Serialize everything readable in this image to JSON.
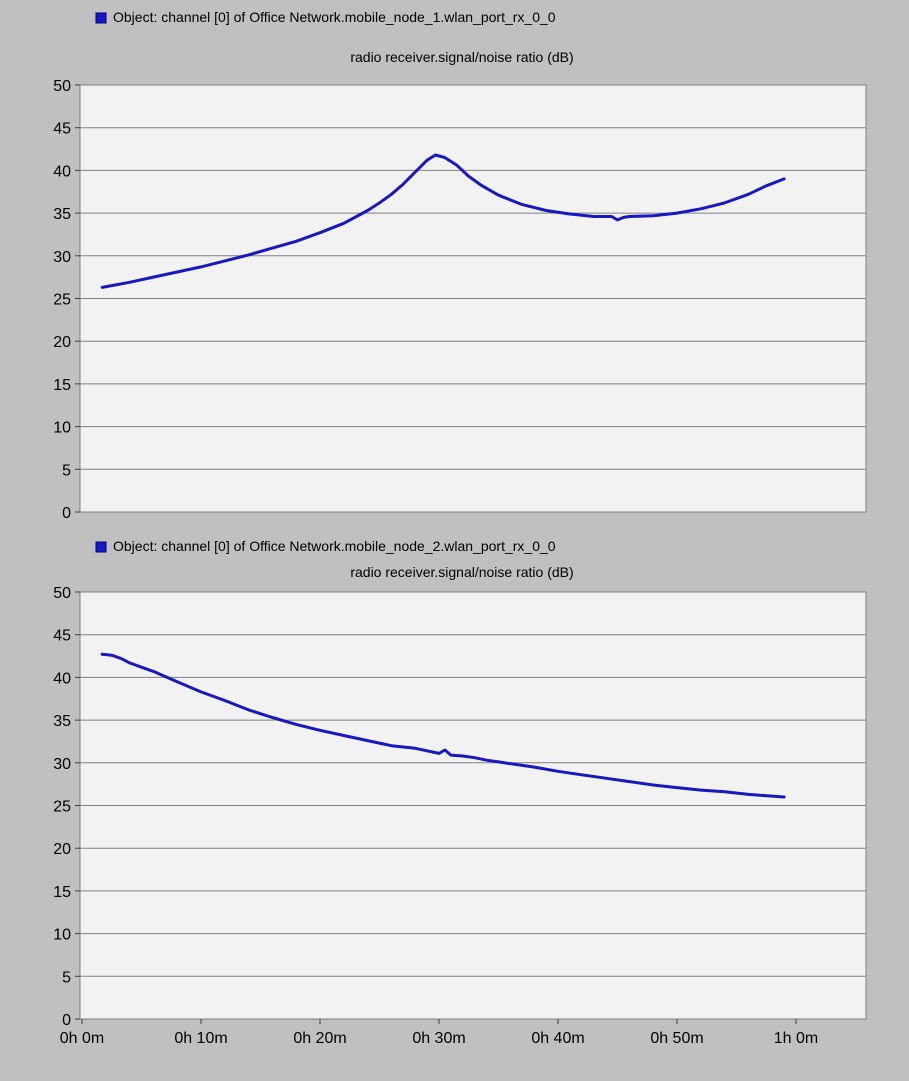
{
  "chart_data": [
    {
      "type": "line",
      "legend_label": "Object: channel [0] of Office Network.mobile_node_1.wlan_port_rx_0_0",
      "title": "radio receiver.signal/noise ratio (dB)",
      "xlabel": "",
      "ylabel": "",
      "ylim": [
        0,
        50
      ],
      "yticks": [
        0,
        5,
        10,
        15,
        20,
        25,
        30,
        35,
        40,
        45,
        50
      ],
      "xlim_minutes": [
        0,
        66
      ],
      "grid": true,
      "series_color": "#1818c0",
      "series": [
        {
          "name": "Object: channel [0] of Office Network.mobile_node_1.wlan_port_rx_0_0",
          "x_minutes": [
            1.7,
            4,
            6,
            8,
            10,
            12,
            14,
            16,
            18,
            20,
            22,
            24,
            25,
            26,
            27,
            28,
            29,
            29.7,
            30.5,
            31.5,
            32.5,
            33.5,
            35,
            37,
            39,
            41,
            43,
            44.5,
            45,
            45.5,
            46,
            48,
            50,
            52,
            54,
            56,
            57.5,
            59
          ],
          "values": [
            26.3,
            26.9,
            27.5,
            28.1,
            28.7,
            29.4,
            30.1,
            30.9,
            31.7,
            32.7,
            33.8,
            35.3,
            36.2,
            37.2,
            38.4,
            39.8,
            41.2,
            41.8,
            41.5,
            40.6,
            39.3,
            38.3,
            37.1,
            36.0,
            35.3,
            34.9,
            34.6,
            34.6,
            34.2,
            34.5,
            34.6,
            34.7,
            35.0,
            35.5,
            36.2,
            37.2,
            38.2,
            39.0
          ]
        }
      ]
    },
    {
      "type": "line",
      "legend_label": "Object: channel [0] of Office Network.mobile_node_2.wlan_port_rx_0_0",
      "title": "radio receiver.signal/noise ratio (dB)",
      "xlabel": "",
      "ylabel": "",
      "ylim": [
        0,
        50
      ],
      "yticks": [
        0,
        5,
        10,
        15,
        20,
        25,
        30,
        35,
        40,
        45,
        50
      ],
      "xlim_minutes": [
        0,
        66
      ],
      "xticks": [
        "0h 0m",
        "0h 10m",
        "0h 20m",
        "0h 30m",
        "0h 40m",
        "0h 50m",
        "1h 0m"
      ],
      "xtick_minutes": [
        0,
        10,
        20,
        30,
        40,
        50,
        60
      ],
      "grid": true,
      "series_color": "#1818c0",
      "series": [
        {
          "name": "Object: channel [0] of Office Network.mobile_node_2.wlan_port_rx_0_0",
          "x_minutes": [
            1.7,
            2.5,
            3.3,
            4,
            5,
            6,
            8,
            10,
            12,
            14,
            16,
            18,
            20,
            22,
            24,
            26,
            28,
            29,
            30,
            30.5,
            31,
            32,
            33,
            34,
            35,
            36,
            37,
            38,
            40,
            42,
            44,
            46,
            48,
            50,
            52,
            54,
            56,
            58,
            59
          ],
          "values": [
            42.7,
            42.6,
            42.2,
            41.7,
            41.2,
            40.7,
            39.5,
            38.3,
            37.3,
            36.2,
            35.3,
            34.5,
            33.8,
            33.2,
            32.6,
            32.0,
            31.7,
            31.4,
            31.1,
            31.5,
            30.9,
            30.8,
            30.6,
            30.3,
            30.1,
            29.9,
            29.7,
            29.5,
            29.0,
            28.6,
            28.2,
            27.8,
            27.4,
            27.1,
            26.8,
            26.6,
            26.3,
            26.1,
            26.0
          ]
        }
      ]
    }
  ]
}
